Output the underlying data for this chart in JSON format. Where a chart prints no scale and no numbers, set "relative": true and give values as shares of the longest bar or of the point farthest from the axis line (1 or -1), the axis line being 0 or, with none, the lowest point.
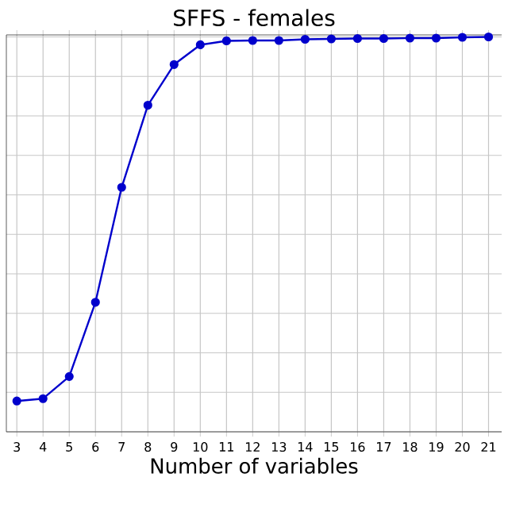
{
  "chart_data": {
    "type": "line",
    "title": "SFFS - females",
    "xlabel": "Number of variables",
    "x": [
      3,
      4,
      5,
      6,
      7,
      8,
      9,
      10,
      11,
      12,
      13,
      14,
      15,
      16,
      17,
      18,
      19,
      20,
      21
    ],
    "series": [
      {
        "color": "#0000cc",
        "values": [
          0.078,
          0.084,
          0.14,
          0.328,
          0.619,
          0.827,
          0.93,
          0.98,
          0.99,
          0.991,
          0.991,
          0.994,
          0.995,
          0.996,
          0.996,
          0.997,
          0.997,
          0.999,
          1
        ]
      }
    ],
    "relative": true,
    "xlim": [
      2.6,
      21.5
    ],
    "xticks": [
      3,
      4,
      5,
      6,
      7,
      8,
      9,
      10,
      11,
      12,
      13,
      14,
      15,
      16,
      17,
      18,
      19,
      20,
      21
    ],
    "grid": true,
    "marker": "circle",
    "line_style": "solid"
  }
}
